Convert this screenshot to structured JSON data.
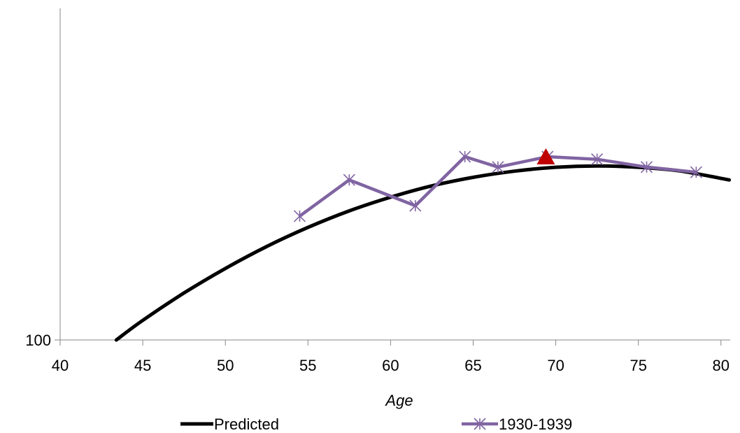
{
  "chart_data": {
    "type": "line",
    "title": "",
    "xlabel": "Age",
    "ylabel": "",
    "xlim": [
      40,
      80.5
    ],
    "x_ticks": [
      "40",
      "45",
      "50",
      "55",
      "60",
      "65",
      "70",
      "75",
      "80"
    ],
    "y_ticks": [
      "100"
    ],
    "y_axis_visible_range_fraction": [
      0,
      1
    ],
    "grid": false,
    "legend_position": "bottom",
    "series": [
      {
        "name": "Predicted",
        "kind": "curve",
        "color": "#000000",
        "x": [
          43.4,
          45,
          47.5,
          50,
          52.5,
          55,
          57.5,
          60,
          62.5,
          65,
          67.5,
          70,
          72.5,
          75,
          77.5,
          80.5
        ],
        "y": [
          0.0,
          0.076,
          0.182,
          0.277,
          0.362,
          0.436,
          0.5,
          0.553,
          0.597,
          0.63,
          0.654,
          0.669,
          0.674,
          0.669,
          0.655,
          0.62
        ]
      },
      {
        "name": "1930-1939",
        "kind": "line-markers",
        "color": "#8064A2",
        "marker": "asterisk",
        "x": [
          54.5,
          57.5,
          61.5,
          64.5,
          66.5,
          69.5,
          72.5,
          75.5,
          78.5
        ],
        "y": [
          0.48,
          0.62,
          0.52,
          0.71,
          0.67,
          0.71,
          0.7,
          0.67,
          0.65
        ]
      }
    ],
    "highlight": {
      "name": "peak-marker",
      "x": 69.4,
      "y": 0.71,
      "shape": "triangle",
      "color": "#C00000"
    }
  }
}
